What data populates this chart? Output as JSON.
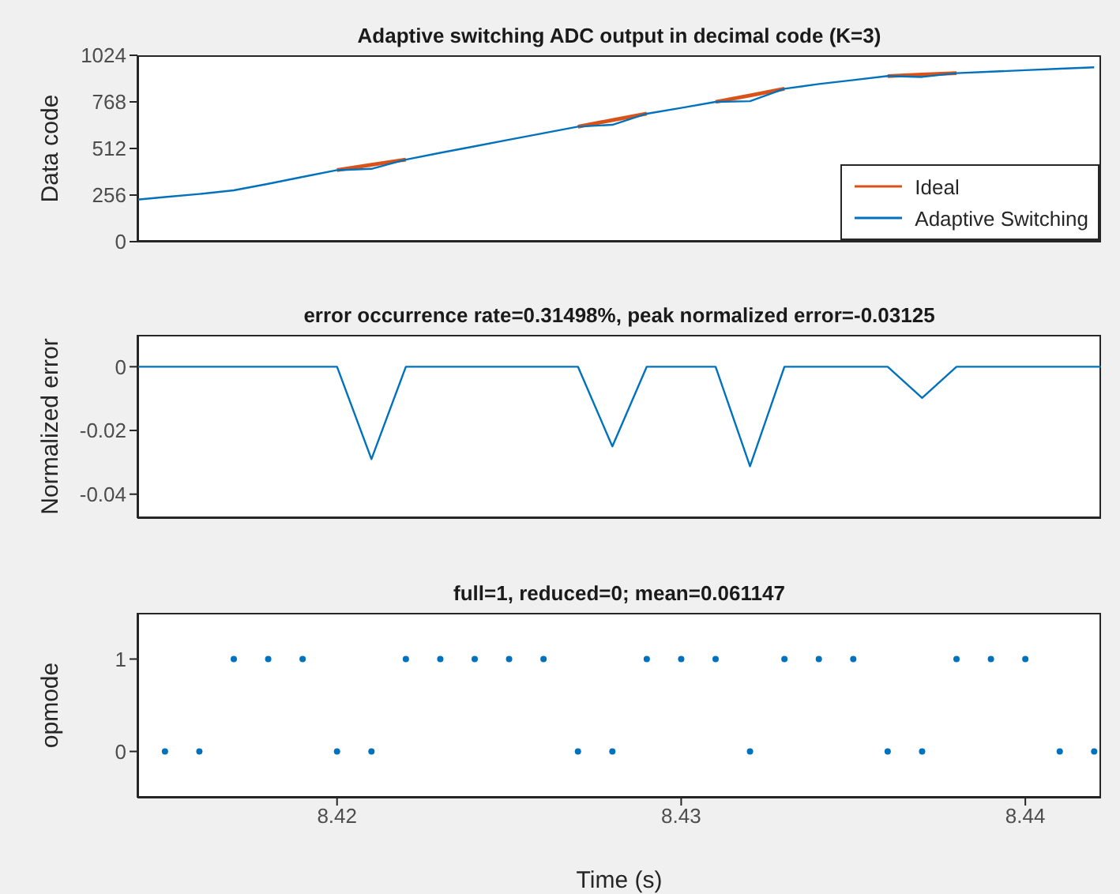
{
  "chart_data": [
    {
      "type": "line",
      "title": "Adaptive switching ADC output in decimal code (K=3)",
      "ylabel": "Data code",
      "xlim": [
        8.4142,
        8.4422
      ],
      "xticks": [
        8.42,
        8.43,
        8.44
      ],
      "ylim": [
        0,
        1024
      ],
      "yticks": [
        0,
        256,
        512,
        768,
        1024
      ],
      "tick_labels": "y",
      "legend": "bottom right",
      "series": [
        {
          "name": "Ideal",
          "color": "#d95319",
          "x": [
            8.42,
            8.421,
            8.422,
            8.424,
            8.427,
            8.428,
            8.429,
            8.43,
            8.431,
            8.432,
            8.433,
            8.434,
            8.436,
            8.437,
            8.438
          ],
          "values": [
            393,
            422,
            451,
            null,
            632,
            668,
            703,
            null,
            768,
            803,
            840,
            null,
            910,
            918,
            926
          ]
        },
        {
          "name": "Adaptive Switching",
          "color": "#0072bd",
          "x": [
            8.4142,
            8.415,
            8.416,
            8.417,
            8.418,
            8.419,
            8.42,
            8.421,
            8.422,
            8.423,
            8.424,
            8.425,
            8.426,
            8.427,
            8.428,
            8.429,
            8.43,
            8.431,
            8.432,
            8.433,
            8.434,
            8.435,
            8.436,
            8.437,
            8.438,
            8.439,
            8.44,
            8.441,
            8.442
          ],
          "values": [
            231,
            245,
            262,
            282,
            318,
            356,
            393,
            400,
            451,
            488,
            524,
            560,
            596,
            632,
            642,
            703,
            735,
            768,
            772,
            840,
            866,
            888,
            910,
            905,
            926,
            934,
            942,
            950,
            958
          ]
        }
      ]
    },
    {
      "type": "line",
      "title": "error occurrence rate=0.31498%, peak normalized error=-0.03125",
      "ylabel": "Normalized error",
      "xlim": [
        8.4142,
        8.4422
      ],
      "xticks": [
        8.42,
        8.43,
        8.44
      ],
      "ylim": [
        -0.0475,
        0.01
      ],
      "yticks": [
        -0.04,
        -0.02,
        0
      ],
      "tick_labels": "y",
      "series": [
        {
          "color": "#0072bd",
          "x": [
            8.4142,
            8.42,
            8.421,
            8.422,
            8.427,
            8.428,
            8.429,
            8.431,
            8.432,
            8.433,
            8.436,
            8.437,
            8.438,
            8.4422
          ],
          "values": [
            0,
            0,
            -0.029,
            0,
            0,
            -0.025,
            0,
            0,
            -0.03125,
            0,
            0,
            -0.0098,
            0,
            0
          ]
        }
      ]
    },
    {
      "type": "scatter",
      "title": "full=1, reduced=0; mean=0.061147",
      "xlabel": "Time (s)",
      "ylabel": "opmode",
      "xlim": [
        8.4142,
        8.4422
      ],
      "xticks": [
        8.42,
        8.43,
        8.44
      ],
      "ylim": [
        -0.5,
        1.5
      ],
      "yticks": [
        0,
        1
      ],
      "marker": "circle",
      "series": [
        {
          "color": "#0072bd",
          "x": [
            8.415,
            8.416,
            8.417,
            8.418,
            8.419,
            8.42,
            8.421,
            8.422,
            8.423,
            8.424,
            8.425,
            8.426,
            8.427,
            8.428,
            8.429,
            8.43,
            8.431,
            8.432,
            8.433,
            8.434,
            8.435,
            8.436,
            8.437,
            8.438,
            8.439,
            8.44,
            8.441,
            8.442
          ],
          "values": [
            0,
            0,
            1,
            1,
            1,
            0,
            0,
            1,
            1,
            1,
            1,
            1,
            0,
            0,
            1,
            1,
            1,
            0,
            1,
            1,
            1,
            0,
            0,
            1,
            1,
            1,
            0,
            0
          ]
        }
      ]
    }
  ]
}
